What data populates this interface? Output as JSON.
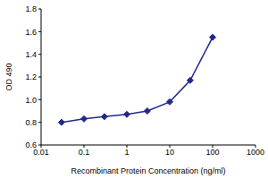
{
  "chart_data": {
    "type": "line",
    "x_label": "Recombinant Protein Concentration (ng/ml)",
    "y_label": "OD 490",
    "x": [
      0.03,
      0.1,
      0.3,
      1,
      3,
      10,
      30,
      100
    ],
    "values": [
      0.8,
      0.83,
      0.85,
      0.87,
      0.9,
      0.98,
      1.17,
      1.55
    ],
    "color": "#1f2a8c",
    "marker": "diamond",
    "log": "x",
    "xlim": [
      0.01,
      1000
    ],
    "xticks": [
      0.01,
      0.1,
      1,
      10,
      100,
      1000
    ],
    "ylim": [
      0.6,
      1.8
    ],
    "yticks": [
      0.6,
      0.8,
      {
        "value": 1,
        "label": "1.0"
      },
      1.2,
      1.4,
      1.6,
      1.8
    ],
    "grid": false
  }
}
